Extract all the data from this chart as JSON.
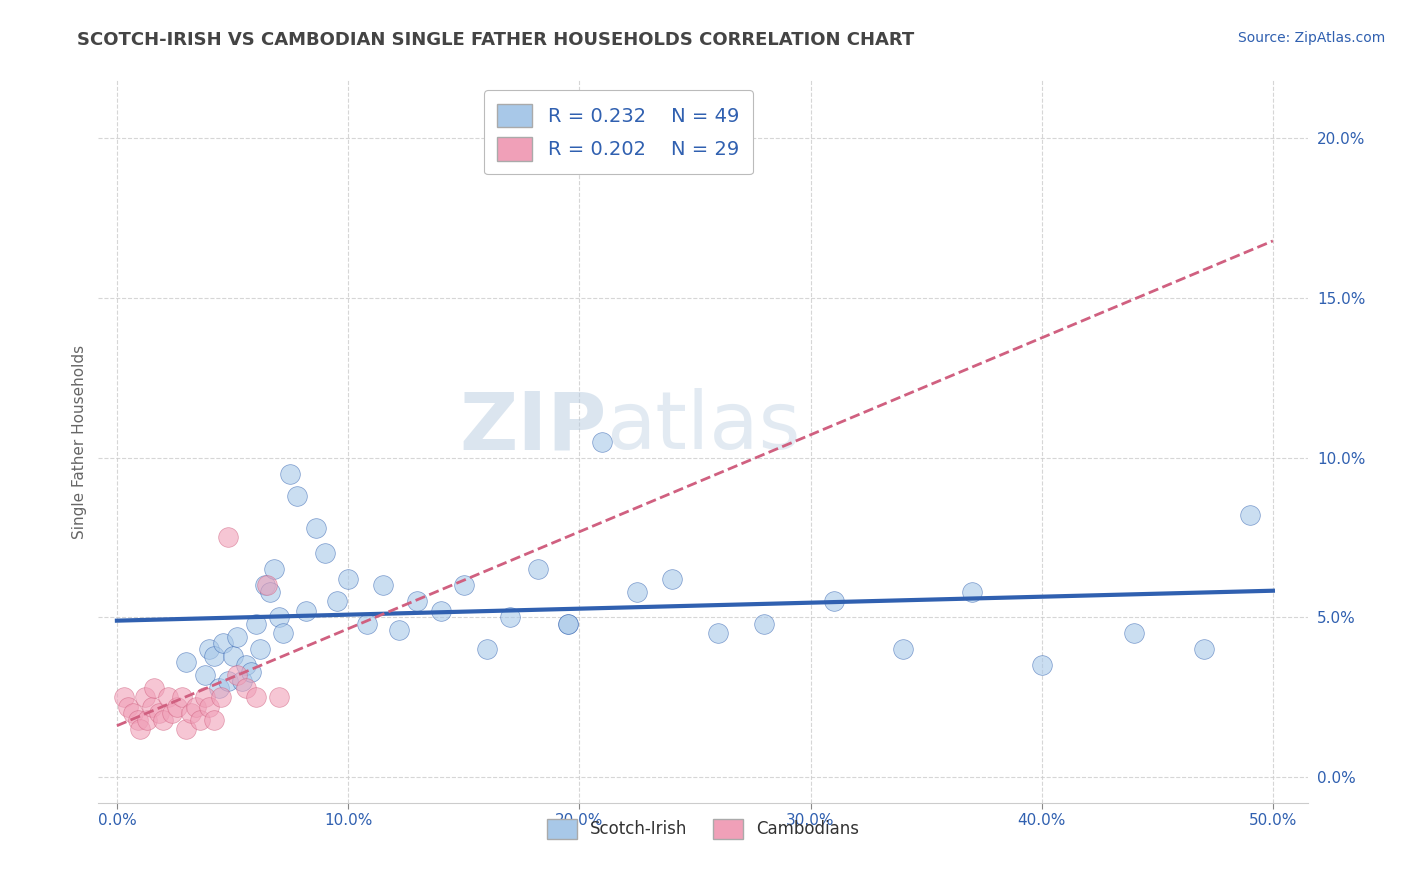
{
  "title": "SCOTCH-IRISH VS CAMBODIAN SINGLE FATHER HOUSEHOLDS CORRELATION CHART",
  "source": "Source: ZipAtlas.com",
  "ylabel": "Single Father Households",
  "xlabel_ticks": [
    "0.0%",
    "10.0%",
    "20.0%",
    "30.0%",
    "40.0%",
    "50.0%"
  ],
  "xlabel_vals": [
    0.0,
    0.1,
    0.2,
    0.3,
    0.4,
    0.5
  ],
  "ylabel_ticks": [
    "0.0%",
    "5.0%",
    "10.0%",
    "15.0%",
    "20.0%"
  ],
  "ylabel_vals": [
    0.0,
    0.05,
    0.1,
    0.15,
    0.2
  ],
  "xlim": [
    -0.008,
    0.515
  ],
  "ylim": [
    -0.008,
    0.218
  ],
  "scotch_irish_x": [
    0.03,
    0.038,
    0.04,
    0.042,
    0.044,
    0.046,
    0.048,
    0.05,
    0.052,
    0.054,
    0.056,
    0.058,
    0.06,
    0.062,
    0.064,
    0.066,
    0.068,
    0.07,
    0.072,
    0.075,
    0.078,
    0.082,
    0.086,
    0.09,
    0.095,
    0.1,
    0.108,
    0.115,
    0.122,
    0.13,
    0.14,
    0.15,
    0.16,
    0.17,
    0.182,
    0.195,
    0.21,
    0.225,
    0.24,
    0.26,
    0.28,
    0.31,
    0.34,
    0.37,
    0.4,
    0.44,
    0.47,
    0.49,
    0.195
  ],
  "scotch_irish_y": [
    0.036,
    0.032,
    0.04,
    0.038,
    0.028,
    0.042,
    0.03,
    0.038,
    0.044,
    0.03,
    0.035,
    0.033,
    0.048,
    0.04,
    0.06,
    0.058,
    0.065,
    0.05,
    0.045,
    0.095,
    0.088,
    0.052,
    0.078,
    0.07,
    0.055,
    0.062,
    0.048,
    0.06,
    0.046,
    0.055,
    0.052,
    0.06,
    0.04,
    0.05,
    0.065,
    0.048,
    0.105,
    0.058,
    0.062,
    0.045,
    0.048,
    0.055,
    0.04,
    0.058,
    0.035,
    0.045,
    0.04,
    0.082,
    0.048
  ],
  "cambodian_x": [
    0.003,
    0.005,
    0.007,
    0.009,
    0.01,
    0.012,
    0.013,
    0.015,
    0.016,
    0.018,
    0.02,
    0.022,
    0.024,
    0.026,
    0.028,
    0.03,
    0.032,
    0.034,
    0.036,
    0.038,
    0.04,
    0.042,
    0.045,
    0.048,
    0.052,
    0.056,
    0.06,
    0.065,
    0.07
  ],
  "cambodian_y": [
    0.025,
    0.022,
    0.02,
    0.018,
    0.015,
    0.025,
    0.018,
    0.022,
    0.028,
    0.02,
    0.018,
    0.025,
    0.02,
    0.022,
    0.025,
    0.015,
    0.02,
    0.022,
    0.018,
    0.025,
    0.022,
    0.018,
    0.025,
    0.075,
    0.032,
    0.028,
    0.025,
    0.06,
    0.025
  ],
  "scotch_irish_color": "#a8c8e8",
  "cambodian_color": "#f0a0b8",
  "scotch_irish_line_color": "#3060b0",
  "cambodian_line_color": "#d06080",
  "legend_scotch_r": "R = 0.232",
  "legend_scotch_n": "N = 49",
  "legend_cambodian_r": "R = 0.202",
  "legend_cambodian_n": "N = 29",
  "watermark_zip": "ZIP",
  "watermark_atlas": "atlas",
  "background_color": "#ffffff",
  "grid_color": "#cccccc",
  "title_color": "#444444",
  "axis_tick_color": "#3060b0",
  "title_fontsize": 13,
  "axis_label_fontsize": 11,
  "tick_fontsize": 11,
  "source_fontsize": 10,
  "legend_r_color": "#3060b0"
}
